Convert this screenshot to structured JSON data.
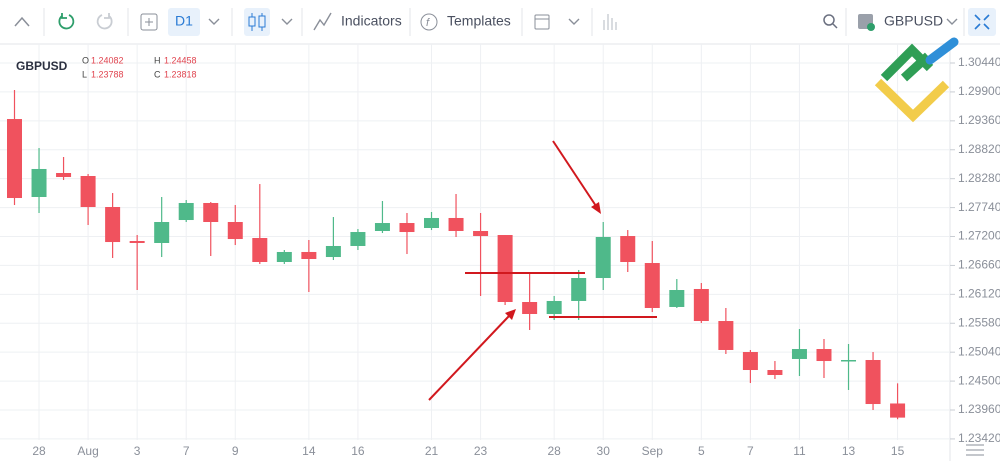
{
  "toolbar": {
    "timeframe": "D1",
    "indicators": "Indicators",
    "templates": "Templates",
    "symbol": "GBPUSD"
  },
  "chart_data": {
    "type": "candlestick",
    "title": "GBPUSD",
    "ohlc_labels": [
      "O",
      "H",
      "L",
      "C"
    ],
    "categories": [
      null,
      "28",
      null,
      "Aug",
      null,
      "3",
      null,
      "7",
      null,
      "9",
      null,
      null,
      "14",
      null,
      "16",
      null,
      null,
      "21",
      null,
      "23",
      null,
      null,
      "28",
      null,
      "30",
      null,
      "Sep",
      null,
      "5",
      null,
      "7",
      null,
      "11",
      null,
      "13",
      null,
      "15"
    ],
    "open": [
      1.29394,
      1.27938,
      1.28386,
      1.2833,
      1.27751,
      1.27116,
      1.27079,
      1.27508,
      1.27826,
      1.27471,
      1.27172,
      1.26724,
      1.26911,
      1.26817,
      1.27023,
      1.27303,
      1.27452,
      1.27359,
      1.27546,
      1.27303,
      1.27228,
      1.25977,
      1.25753,
      1.25996,
      1.26425,
      1.27209,
      1.26705,
      1.25884,
      1.2622,
      1.25622,
      1.25043,
      1.24707,
      1.24913,
      1.25099,
      1.24875,
      1.24894,
      1.24082
    ],
    "high": [
      1.29936,
      1.28853,
      1.28685,
      1.28367,
      1.28012,
      1.27228,
      1.27938,
      1.27882,
      1.27844,
      1.27788,
      1.2818,
      1.26948,
      1.27135,
      1.27564,
      1.2734,
      1.27863,
      1.27639,
      1.27658,
      1.27994,
      1.27639,
      1.27228,
      1.26537,
      1.26089,
      1.26575,
      1.27471,
      1.27321,
      1.27116,
      1.26406,
      1.26332,
      1.25865,
      1.25081,
      1.24875,
      1.25473,
      1.25286,
      1.25193,
      1.25043,
      1.24458
    ],
    "low": [
      1.27788,
      1.27639,
      1.28255,
      1.27415,
      1.26799,
      1.26201,
      1.26817,
      1.27471,
      1.26836,
      1.27041,
      1.26687,
      1.26687,
      1.26164,
      1.26761,
      1.26948,
      1.27265,
      1.26873,
      1.27321,
      1.27191,
      1.26089,
      1.25921,
      1.25454,
      1.25641,
      1.25641,
      1.26201,
      1.26537,
      1.2579,
      1.25865,
      1.25585,
      1.25006,
      1.24464,
      1.24539,
      1.24595,
      1.24558,
      1.24334,
      1.2396,
      1.23788
    ],
    "close": [
      1.27919,
      1.28461,
      1.28311,
      1.27751,
      1.27097,
      1.27079,
      1.27471,
      1.27826,
      1.27471,
      1.27153,
      1.26724,
      1.26911,
      1.2678,
      1.27023,
      1.27284,
      1.27452,
      1.27284,
      1.27546,
      1.27303,
      1.27209,
      1.25977,
      1.25753,
      1.25996,
      1.26425,
      1.27191,
      1.26724,
      1.25865,
      1.26201,
      1.25622,
      1.25081,
      1.24707,
      1.24614,
      1.25099,
      1.24875,
      1.24894,
      1.24072,
      1.23818
    ],
    "up_color": "#4fb98a",
    "down_color": "#f0525e",
    "ylim": [
      1.234,
      1.30795
    ],
    "yticks": [
      {
        "value": 1.3044,
        "label": "1.30440"
      },
      {
        "value": 1.299,
        "label": "1.29900"
      },
      {
        "value": 1.2936,
        "label": "1.29360"
      },
      {
        "value": 1.2882,
        "label": "1.28820"
      },
      {
        "value": 1.2828,
        "label": "1.28280"
      },
      {
        "value": 1.2774,
        "label": "1.27740"
      },
      {
        "value": 1.272,
        "label": "1.27200"
      },
      {
        "value": 1.2666,
        "label": "1.26660"
      },
      {
        "value": 1.2612,
        "label": "1.26120"
      },
      {
        "value": 1.2558,
        "label": "1.25580"
      },
      {
        "value": 1.2504,
        "label": "1.25040"
      },
      {
        "value": 1.245,
        "label": "1.24500"
      },
      {
        "value": 1.2396,
        "label": "1.23960"
      },
      {
        "value": 1.2342,
        "label": "1.23420"
      }
    ],
    "grid": true
  }
}
